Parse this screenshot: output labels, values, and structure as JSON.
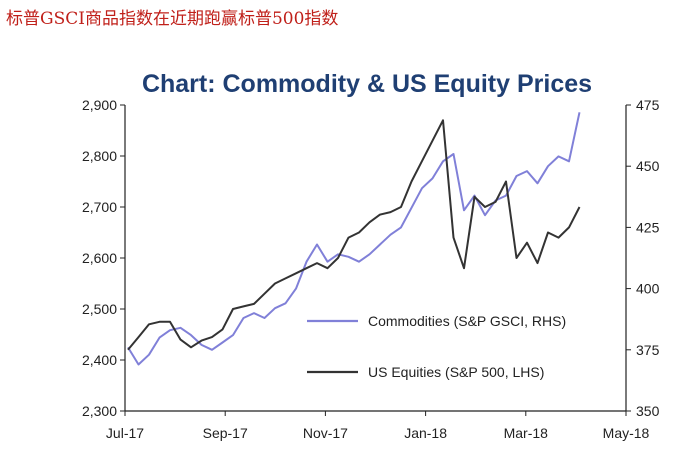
{
  "caption": "标普GSCI商品指数在近期跑赢标普500指数",
  "chart_data": {
    "type": "line",
    "title": "Chart: Commodity & US Equity Prices",
    "xlabel": "",
    "ylabel_left": "",
    "ylabel_right": "",
    "x_tick_labels": [
      "Jul-17",
      "Sep-17",
      "Nov-17",
      "Jan-18",
      "Mar-18",
      "May-18"
    ],
    "x_range_months": [
      "2017-07-01",
      "2018-05-31"
    ],
    "ylim_left": [
      2300,
      2900
    ],
    "yticks_left": [
      "2,300",
      "2,400",
      "2,500",
      "2,600",
      "2,700",
      "2,800",
      "2,900"
    ],
    "ylim_right": [
      350,
      475
    ],
    "yticks_right": [
      "350",
      "375",
      "400",
      "425",
      "450",
      "475"
    ],
    "legend_placement": "lower-right",
    "series": [
      {
        "name": "Commodities (S&P GSCI, RHS)",
        "axis": "right",
        "color": "#8080d8",
        "x": [
          "2017-07-03",
          "2017-07-10",
          "2017-07-17",
          "2017-07-24",
          "2017-07-31",
          "2017-08-07",
          "2017-08-14",
          "2017-08-21",
          "2017-08-28",
          "2017-09-04",
          "2017-09-11",
          "2017-09-18",
          "2017-09-25",
          "2017-10-02",
          "2017-10-09",
          "2017-10-16",
          "2017-10-23",
          "2017-10-30",
          "2017-11-06",
          "2017-11-13",
          "2017-11-20",
          "2017-11-27",
          "2017-12-04",
          "2017-12-11",
          "2017-12-18",
          "2017-12-25",
          "2018-01-01",
          "2018-01-08",
          "2018-01-15",
          "2018-01-22",
          "2018-01-29",
          "2018-02-05",
          "2018-02-12",
          "2018-02-19",
          "2018-02-26",
          "2018-03-05",
          "2018-03-12",
          "2018-03-19",
          "2018-03-26",
          "2018-04-02",
          "2018-04-09",
          "2018-04-16",
          "2018-04-23",
          "2018-04-30"
        ],
        "values": [
          376,
          369,
          373,
          380,
          383,
          384,
          381,
          377,
          375,
          378,
          381,
          388,
          390,
          388,
          392,
          394,
          400,
          411,
          418,
          411,
          414,
          413,
          411,
          414,
          418,
          422,
          425,
          433,
          441,
          445,
          452,
          455,
          432,
          438,
          430,
          436,
          438,
          446,
          448,
          443,
          450,
          454,
          452,
          472
        ]
      },
      {
        "name": "US Equities (S&P 500, LHS)",
        "axis": "left",
        "color": "#333333",
        "x": [
          "2017-07-03",
          "2017-07-10",
          "2017-07-17",
          "2017-07-24",
          "2017-07-31",
          "2017-08-07",
          "2017-08-14",
          "2017-08-21",
          "2017-08-28",
          "2017-09-04",
          "2017-09-11",
          "2017-09-18",
          "2017-09-25",
          "2017-10-02",
          "2017-10-09",
          "2017-10-16",
          "2017-10-23",
          "2017-10-30",
          "2017-11-06",
          "2017-11-13",
          "2017-11-20",
          "2017-11-27",
          "2017-12-04",
          "2017-12-11",
          "2017-12-18",
          "2017-12-25",
          "2018-01-01",
          "2018-01-08",
          "2018-01-15",
          "2018-01-22",
          "2018-01-29",
          "2018-02-05",
          "2018-02-12",
          "2018-02-19",
          "2018-02-26",
          "2018-03-05",
          "2018-03-12",
          "2018-03-19",
          "2018-03-26",
          "2018-04-02",
          "2018-04-09",
          "2018-04-16",
          "2018-04-23",
          "2018-04-30"
        ],
        "values": [
          2420,
          2445,
          2470,
          2475,
          2475,
          2440,
          2425,
          2438,
          2445,
          2460,
          2500,
          2505,
          2510,
          2530,
          2550,
          2560,
          2570,
          2580,
          2590,
          2580,
          2600,
          2640,
          2650,
          2670,
          2685,
          2690,
          2700,
          2750,
          2790,
          2830,
          2870,
          2640,
          2580,
          2720,
          2700,
          2710,
          2750,
          2600,
          2630,
          2590,
          2650,
          2640,
          2660,
          2700
        ]
      }
    ],
    "grid": false
  }
}
